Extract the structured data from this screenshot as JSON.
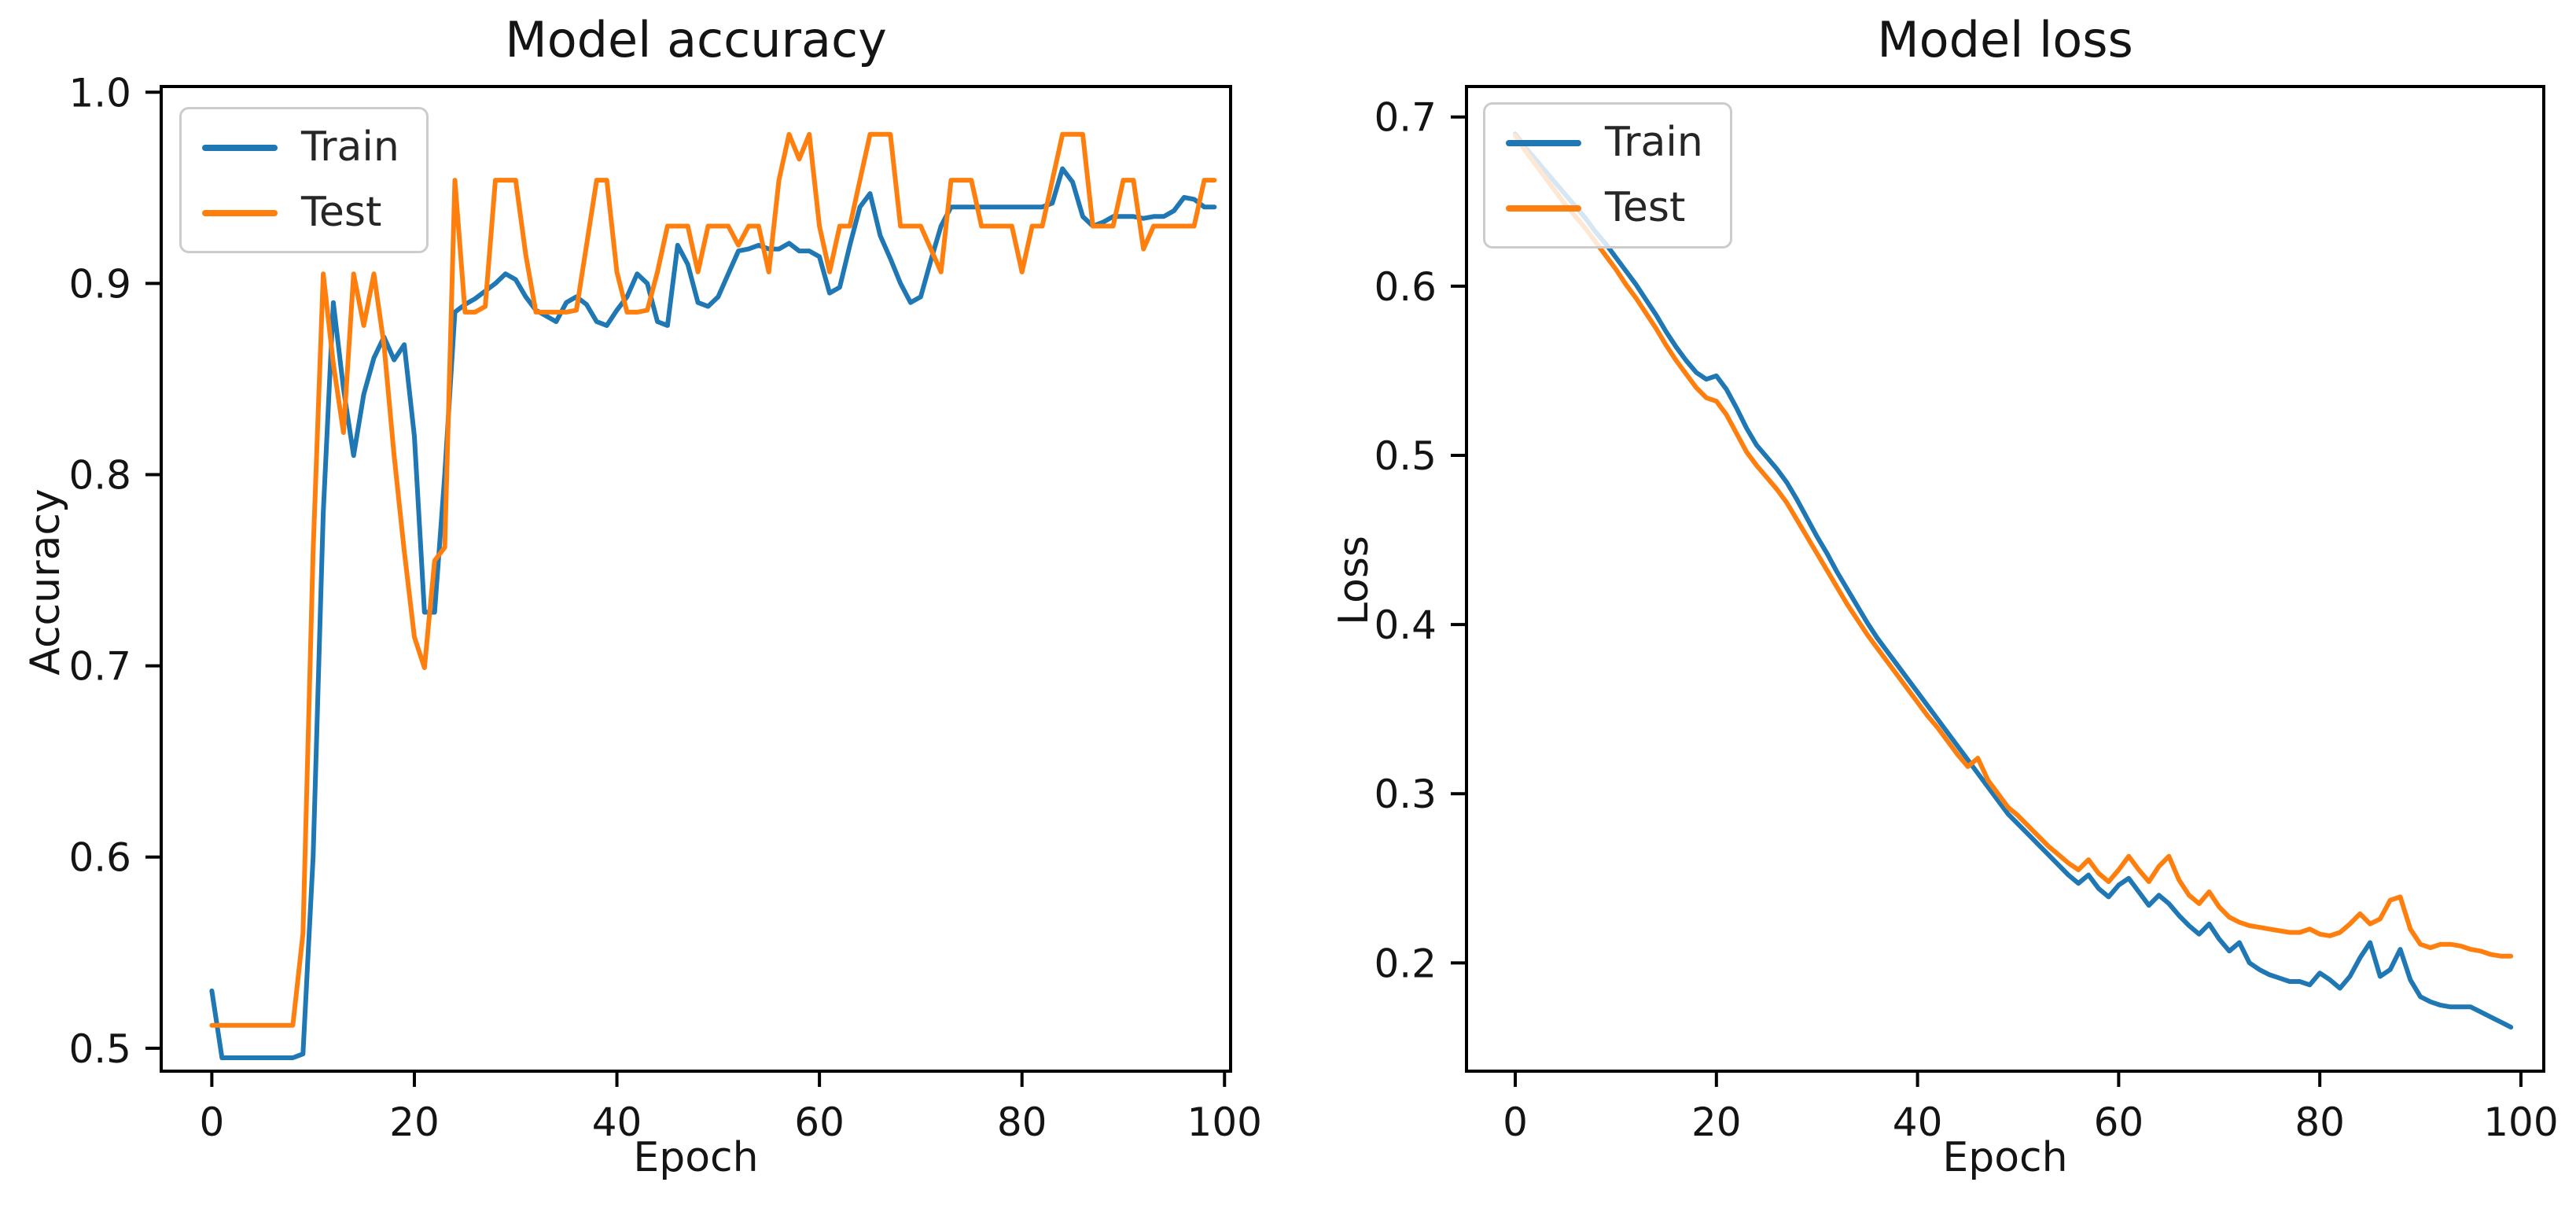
{
  "figure": {
    "background": "#ffffff",
    "text_color": "#141414",
    "spine_color": "#000000",
    "legend_border_color": "#cccccc"
  },
  "chart_data": [
    {
      "type": "line",
      "title": "Model accuracy",
      "xlabel": "Epoch",
      "ylabel": "Accuracy",
      "xlim": [
        -5.0,
        100.6
      ],
      "ylim": [
        0.488,
        1.003
      ],
      "xticks": [
        0,
        20,
        40,
        60,
        80,
        100
      ],
      "xtick_labels": [
        "0",
        "20",
        "40",
        "60",
        "80",
        "100"
      ],
      "yticks": [
        1.0,
        0.9,
        0.8,
        0.7,
        0.6,
        0.5
      ],
      "ytick_labels": [
        "1.0",
        "0.9",
        "0.8",
        "0.7",
        "0.6",
        "0.5"
      ],
      "grid": false,
      "legend_position": "upper-left",
      "x_start": 0,
      "series": [
        {
          "name": "Train",
          "color": "#1f77b4",
          "values": [
            0.53,
            0.495,
            0.495,
            0.495,
            0.495,
            0.495,
            0.495,
            0.495,
            0.495,
            0.497,
            0.6,
            0.78,
            0.89,
            0.845,
            0.81,
            0.842,
            0.861,
            0.872,
            0.86,
            0.868,
            0.82,
            0.728,
            0.728,
            0.8,
            0.885,
            0.889,
            0.892,
            0.896,
            0.9,
            0.905,
            0.902,
            0.893,
            0.886,
            0.883,
            0.88,
            0.89,
            0.893,
            0.889,
            0.88,
            0.878,
            0.886,
            0.893,
            0.905,
            0.9,
            0.88,
            0.878,
            0.92,
            0.91,
            0.89,
            0.888,
            0.893,
            0.905,
            0.917,
            0.918,
            0.92,
            0.918,
            0.918,
            0.921,
            0.917,
            0.917,
            0.914,
            0.895,
            0.898,
            0.92,
            0.94,
            0.947,
            0.925,
            0.913,
            0.9,
            0.89,
            0.893,
            0.912,
            0.93,
            0.94,
            0.94,
            0.94,
            0.94,
            0.94,
            0.94,
            0.94,
            0.94,
            0.94,
            0.94,
            0.942,
            0.96,
            0.953,
            0.935,
            0.93,
            0.932,
            0.935,
            0.935,
            0.935,
            0.934,
            0.935,
            0.935,
            0.938,
            0.945,
            0.944,
            0.94,
            0.94
          ]
        },
        {
          "name": "Test",
          "color": "#ff7f0e",
          "values": [
            0.512,
            0.512,
            0.512,
            0.512,
            0.512,
            0.512,
            0.512,
            0.512,
            0.512,
            0.56,
            0.76,
            0.905,
            0.858,
            0.822,
            0.905,
            0.878,
            0.905,
            0.868,
            0.81,
            0.76,
            0.715,
            0.699,
            0.755,
            0.762,
            0.954,
            0.885,
            0.885,
            0.888,
            0.954,
            0.954,
            0.954,
            0.915,
            0.885,
            0.885,
            0.885,
            0.885,
            0.886,
            0.92,
            0.954,
            0.954,
            0.906,
            0.885,
            0.885,
            0.886,
            0.906,
            0.93,
            0.93,
            0.93,
            0.906,
            0.93,
            0.93,
            0.93,
            0.92,
            0.93,
            0.93,
            0.906,
            0.954,
            0.978,
            0.965,
            0.978,
            0.93,
            0.906,
            0.93,
            0.93,
            0.954,
            0.978,
            0.978,
            0.978,
            0.93,
            0.93,
            0.93,
            0.918,
            0.906,
            0.954,
            0.954,
            0.954,
            0.93,
            0.93,
            0.93,
            0.93,
            0.906,
            0.93,
            0.93,
            0.954,
            0.978,
            0.978,
            0.978,
            0.93,
            0.93,
            0.93,
            0.954,
            0.954,
            0.918,
            0.93,
            0.93,
            0.93,
            0.93,
            0.93,
            0.954,
            0.954
          ]
        }
      ]
    },
    {
      "type": "line",
      "title": "Model loss",
      "xlabel": "Epoch",
      "ylabel": "Loss",
      "xlim": [
        -4.85,
        102.27
      ],
      "ylim": [
        0.136,
        0.718
      ],
      "xticks": [
        0,
        20,
        40,
        60,
        80,
        100
      ],
      "xtick_labels": [
        "0",
        "20",
        "40",
        "60",
        "80",
        "100"
      ],
      "yticks": [
        0.7,
        0.6,
        0.5,
        0.4,
        0.3,
        0.2
      ],
      "ytick_labels": [
        "0.7",
        "0.6",
        "0.5",
        "0.4",
        "0.3",
        "0.2"
      ],
      "grid": false,
      "legend_position": "upper-left",
      "x_start": 0,
      "series": [
        {
          "name": "Train",
          "color": "#1f77b4",
          "values": [
            0.69,
            0.682,
            0.675,
            0.668,
            0.661,
            0.654,
            0.647,
            0.64,
            0.632,
            0.625,
            0.617,
            0.609,
            0.601,
            0.592,
            0.583,
            0.573,
            0.564,
            0.556,
            0.549,
            0.545,
            0.547,
            0.539,
            0.528,
            0.516,
            0.506,
            0.499,
            0.492,
            0.484,
            0.474,
            0.463,
            0.452,
            0.442,
            0.431,
            0.421,
            0.411,
            0.401,
            0.392,
            0.384,
            0.376,
            0.368,
            0.36,
            0.352,
            0.344,
            0.336,
            0.328,
            0.32,
            0.312,
            0.304,
            0.296,
            0.288,
            0.282,
            0.276,
            0.27,
            0.264,
            0.258,
            0.252,
            0.247,
            0.252,
            0.244,
            0.239,
            0.246,
            0.25,
            0.242,
            0.234,
            0.24,
            0.235,
            0.228,
            0.222,
            0.217,
            0.223,
            0.214,
            0.207,
            0.212,
            0.2,
            0.196,
            0.193,
            0.191,
            0.189,
            0.189,
            0.187,
            0.194,
            0.19,
            0.185,
            0.192,
            0.203,
            0.212,
            0.192,
            0.196,
            0.208,
            0.19,
            0.18,
            0.177,
            0.175,
            0.174,
            0.174,
            0.174,
            0.171,
            0.168,
            0.165,
            0.162
          ]
        },
        {
          "name": "Test",
          "color": "#ff7f0e",
          "values": [
            0.689,
            0.68,
            0.672,
            0.664,
            0.656,
            0.648,
            0.641,
            0.634,
            0.626,
            0.618,
            0.61,
            0.601,
            0.593,
            0.584,
            0.575,
            0.565,
            0.556,
            0.548,
            0.54,
            0.534,
            0.532,
            0.524,
            0.513,
            0.502,
            0.494,
            0.487,
            0.48,
            0.472,
            0.462,
            0.452,
            0.442,
            0.432,
            0.422,
            0.412,
            0.403,
            0.394,
            0.386,
            0.378,
            0.37,
            0.362,
            0.354,
            0.346,
            0.339,
            0.331,
            0.323,
            0.316,
            0.321,
            0.308,
            0.3,
            0.292,
            0.287,
            0.281,
            0.275,
            0.269,
            0.264,
            0.259,
            0.255,
            0.261,
            0.253,
            0.248,
            0.255,
            0.263,
            0.255,
            0.248,
            0.257,
            0.263,
            0.249,
            0.24,
            0.235,
            0.242,
            0.233,
            0.227,
            0.224,
            0.222,
            0.221,
            0.22,
            0.219,
            0.218,
            0.218,
            0.22,
            0.217,
            0.216,
            0.218,
            0.223,
            0.229,
            0.223,
            0.226,
            0.237,
            0.239,
            0.22,
            0.211,
            0.209,
            0.211,
            0.211,
            0.21,
            0.208,
            0.207,
            0.205,
            0.204,
            0.204
          ]
        }
      ]
    }
  ]
}
